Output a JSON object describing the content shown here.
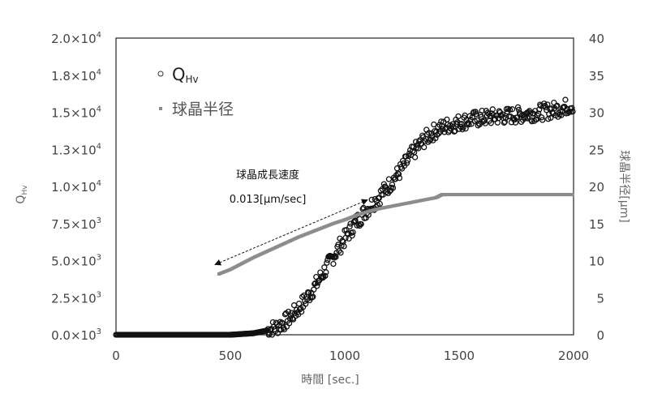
{
  "chart_data": {
    "type": "scatter",
    "xlabel": "時間 [sec.]",
    "ylabel_left": {
      "main": "Q",
      "sub": "Hv"
    },
    "ylabel_right": "球晶半径[μm]",
    "xlim": [
      0,
      2000
    ],
    "ylim_left": [
      0,
      20000
    ],
    "ylim_right": [
      0,
      40
    ],
    "x_ticks": [
      "0",
      "500",
      "1000",
      "1500",
      "2000"
    ],
    "x_tick_values": [
      0,
      500,
      1000,
      1500,
      2000
    ],
    "left_ticks": [
      {
        "value": 0,
        "mant": "0.0×10",
        "exp": "3"
      },
      {
        "value": 2500,
        "mant": "2.5×10",
        "exp": "3"
      },
      {
        "value": 5000,
        "mant": "5.0×10",
        "exp": "3"
      },
      {
        "value": 7500,
        "mant": "7.5×10",
        "exp": "3"
      },
      {
        "value": 10000,
        "mant": "1.0×10",
        "exp": "4"
      },
      {
        "value": 12500,
        "mant": "1.3×10",
        "exp": "4"
      },
      {
        "value": 15000,
        "mant": "1.5×10",
        "exp": "4"
      },
      {
        "value": 17500,
        "mant": "1.8×10",
        "exp": "4"
      },
      {
        "value": 20000,
        "mant": "2.0×10",
        "exp": "4"
      }
    ],
    "right_ticks": [
      "0",
      "5",
      "10",
      "15",
      "20",
      "25",
      "30",
      "35",
      "40"
    ],
    "right_tick_values": [
      0,
      5,
      10,
      15,
      20,
      25,
      30,
      35,
      40
    ],
    "grid": false,
    "legend_placement": "top-left",
    "series": [
      {
        "name": "QHv",
        "legend_main": "Q",
        "legend_sub": "Hv",
        "axis": "left",
        "marker": "open-circle",
        "color": "#111111",
        "x": [
          0,
          50,
          100,
          150,
          200,
          250,
          300,
          350,
          400,
          450,
          500,
          550,
          600,
          650,
          700,
          750,
          800,
          850,
          900,
          950,
          1000,
          1050,
          1100,
          1150,
          1200,
          1250,
          1300,
          1350,
          1400,
          1450,
          1500,
          1550,
          1600,
          1650,
          1700,
          1750,
          1800,
          1850,
          1900,
          1950,
          2000
        ],
        "y": [
          0,
          0,
          0,
          0,
          0,
          0,
          0,
          0,
          0,
          0,
          0,
          50,
          100,
          250,
          500,
          1000,
          1800,
          2800,
          4000,
          5300,
          6500,
          7600,
          8500,
          9300,
          10200,
          11200,
          12300,
          13200,
          13800,
          14100,
          14300,
          14500,
          14600,
          14700,
          14750,
          14800,
          14900,
          15000,
          15100,
          15300,
          15500
        ]
      },
      {
        "name": "球晶半径",
        "axis": "right",
        "marker": "square",
        "color": "#8c8c8c",
        "x": [
          450,
          500,
          550,
          600,
          650,
          700,
          750,
          800,
          850,
          900,
          950,
          1000,
          1050,
          1100,
          1150,
          1200,
          1250,
          1300,
          1350,
          1400,
          1425,
          1450,
          1500,
          1550,
          1600,
          1650,
          1700,
          1750,
          1800,
          1850,
          1900,
          1950,
          2000
        ],
        "y": [
          8.2,
          8.8,
          9.6,
          10.4,
          11.1,
          11.8,
          12.5,
          13.2,
          13.8,
          14.4,
          15.0,
          15.5,
          16.1,
          16.6,
          17.0,
          17.3,
          17.6,
          17.9,
          18.2,
          18.5,
          18.9,
          18.9,
          18.9,
          18.9,
          18.9,
          18.9,
          18.9,
          18.9,
          18.9,
          18.9,
          18.9,
          18.9,
          18.9
        ]
      }
    ],
    "annotation": {
      "line1": "球晶成長速度",
      "line2": "0.013[μm/sec]"
    }
  }
}
